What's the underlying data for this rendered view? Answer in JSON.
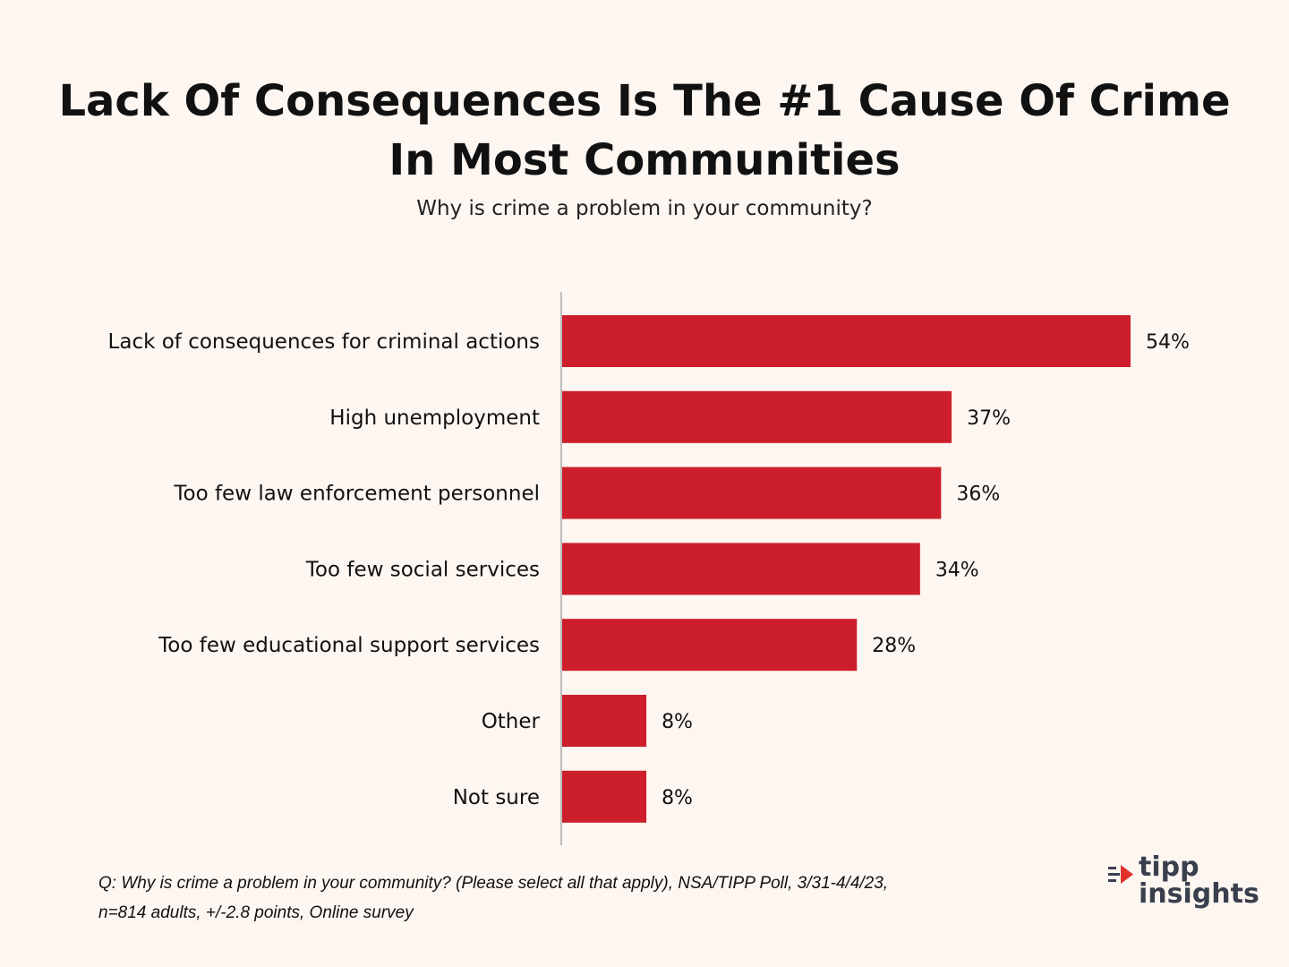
{
  "title_line1": "Lack Of Consequences Is The #1 Cause Of Crime",
  "title_line2": "In Most Communities",
  "subtitle": "Why is crime a problem in your community?",
  "footnote_line1": "Q: Why is crime a problem in your community? (Please select all that apply), NSA/TIPP Poll, 3/31-4/4/23,",
  "footnote_line2": "n=814 adults, +/-2.8 points, Online survey",
  "logo": {
    "word1": "tipp",
    "word2": "insights",
    "icon": "speed-arrow-icon"
  },
  "colors": {
    "bar": "#cc1f2b",
    "background": "#fdf6f1",
    "axis": "#bdbdbd",
    "logo_text": "#3a3f4d",
    "logo_accent": "#e0312b"
  },
  "chart_data": {
    "type": "bar",
    "orientation": "horizontal",
    "title": "Lack Of Consequences Is The #1 Cause Of Crime In Most Communities",
    "subtitle": "Why is crime a problem in your community?",
    "categories": [
      "Lack of consequences for criminal actions",
      "High unemployment",
      "Too few law enforcement personnel",
      "Too few social services",
      "Too few educational support services",
      "Other",
      "Not sure"
    ],
    "values": [
      54,
      37,
      36,
      34,
      28,
      8,
      8
    ],
    "value_labels": [
      "54%",
      "37%",
      "36%",
      "34%",
      "28%",
      "8%",
      "8%"
    ],
    "unit": "%",
    "xlim": [
      0,
      54
    ],
    "grid": false,
    "legend": "none"
  }
}
